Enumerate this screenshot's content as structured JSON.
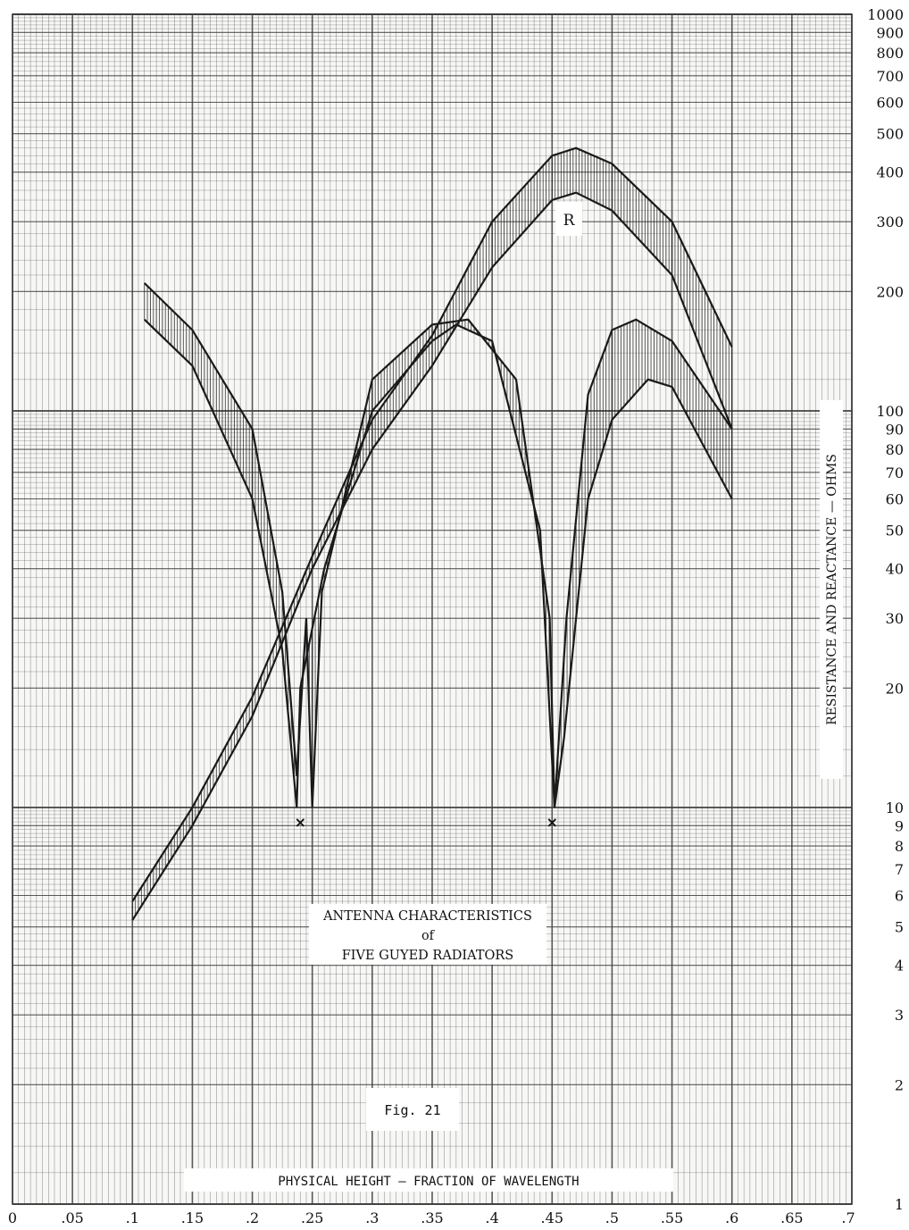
{
  "chart_data": {
    "type": "line",
    "title": [
      "ANTENNA CHARACTERISTICS",
      "of",
      "FIVE GUYED RADIATORS"
    ],
    "figure_label": "Fig. 21",
    "xlabel": "PHYSICAL HEIGHT — FRACTION OF WAVELENGTH",
    "ylabel": "RESISTANCE AND REACTANCE — OHMS",
    "x_scale": "linear",
    "y_scale": "log",
    "xlim": [
      0,
      0.7
    ],
    "ylim": [
      1,
      1000
    ],
    "x_ticks": [
      "0",
      ".05",
      ".1",
      ".15",
      ".2",
      ".25",
      ".3",
      ".35",
      ".4",
      ".45",
      ".5",
      ".55",
      ".6",
      ".65",
      ".7"
    ],
    "y_ticks": [
      {
        "value": 1,
        "label": "1"
      },
      {
        "value": 2,
        "label": "2"
      },
      {
        "value": 3,
        "label": "3"
      },
      {
        "value": 4,
        "label": "4"
      },
      {
        "value": 5,
        "label": "5"
      },
      {
        "value": 6,
        "label": "6"
      },
      {
        "value": 7,
        "label": "7"
      },
      {
        "value": 8,
        "label": "8"
      },
      {
        "value": 9,
        "label": "9"
      },
      {
        "value": 10,
        "label": "10"
      },
      {
        "value": 20,
        "label": "20"
      },
      {
        "value": 30,
        "label": "30"
      },
      {
        "value": 40,
        "label": "40"
      },
      {
        "value": 50,
        "label": "50"
      },
      {
        "value": 60,
        "label": "60"
      },
      {
        "value": 70,
        "label": "70"
      },
      {
        "value": 80,
        "label": "80"
      },
      {
        "value": 90,
        "label": "90"
      },
      {
        "value": 100,
        "label": "100"
      },
      {
        "value": 200,
        "label": "200"
      },
      {
        "value": 300,
        "label": "300"
      },
      {
        "value": 400,
        "label": "400"
      },
      {
        "value": 500,
        "label": "500"
      },
      {
        "value": 600,
        "label": "600"
      },
      {
        "value": 700,
        "label": "700"
      },
      {
        "value": 800,
        "label": "800"
      },
      {
        "value": 900,
        "label": "900"
      },
      {
        "value": 1000,
        "label": "1000"
      }
    ],
    "grid": true,
    "curve_label": "R",
    "series": [
      {
        "name": "R",
        "kind": "band",
        "lower": [
          [
            0.1,
            5.2
          ],
          [
            0.15,
            9
          ],
          [
            0.2,
            17
          ],
          [
            0.25,
            40
          ],
          [
            0.3,
            80
          ],
          [
            0.35,
            130
          ],
          [
            0.4,
            230
          ],
          [
            0.45,
            340
          ],
          [
            0.47,
            355
          ],
          [
            0.5,
            320
          ],
          [
            0.55,
            220
          ],
          [
            0.6,
            90
          ]
        ],
        "upper": [
          [
            0.1,
            5.8
          ],
          [
            0.15,
            10
          ],
          [
            0.2,
            19
          ],
          [
            0.25,
            43
          ],
          [
            0.3,
            95
          ],
          [
            0.35,
            155
          ],
          [
            0.4,
            300
          ],
          [
            0.45,
            440
          ],
          [
            0.47,
            460
          ],
          [
            0.5,
            420
          ],
          [
            0.55,
            300
          ],
          [
            0.6,
            145
          ]
        ]
      },
      {
        "kind": "band",
        "lower": [
          [
            0.11,
            170
          ],
          [
            0.15,
            130
          ],
          [
            0.2,
            60
          ],
          [
            0.225,
            25
          ],
          [
            0.237,
            10
          ],
          [
            0.24,
            20
          ],
          [
            0.26,
            40
          ],
          [
            0.3,
            100
          ],
          [
            0.35,
            150
          ],
          [
            0.37,
            165
          ],
          [
            0.4,
            150
          ],
          [
            0.44,
            50
          ],
          [
            0.452,
            10
          ],
          [
            0.46,
            15
          ],
          [
            0.48,
            60
          ],
          [
            0.5,
            95
          ],
          [
            0.53,
            120
          ],
          [
            0.55,
            115
          ],
          [
            0.6,
            60
          ]
        ],
        "upper": [
          [
            0.11,
            210
          ],
          [
            0.15,
            160
          ],
          [
            0.2,
            90
          ],
          [
            0.225,
            35
          ],
          [
            0.237,
            12
          ],
          [
            0.245,
            30
          ],
          [
            0.25,
            10
          ],
          [
            0.258,
            35
          ],
          [
            0.3,
            120
          ],
          [
            0.35,
            165
          ],
          [
            0.38,
            170
          ],
          [
            0.42,
            120
          ],
          [
            0.448,
            30
          ],
          [
            0.452,
            10
          ],
          [
            0.462,
            30
          ],
          [
            0.48,
            110
          ],
          [
            0.5,
            160
          ],
          [
            0.52,
            170
          ],
          [
            0.55,
            150
          ],
          [
            0.6,
            90
          ]
        ]
      }
    ],
    "markers": [
      {
        "x": 0.24,
        "y": 9.2,
        "symbol": "x"
      },
      {
        "x": 0.45,
        "y": 9.2,
        "symbol": "x"
      }
    ]
  },
  "colors": {
    "grid": "#3d3d3d",
    "band": "#1a1a1a",
    "paper": "#f7f7f5"
  }
}
